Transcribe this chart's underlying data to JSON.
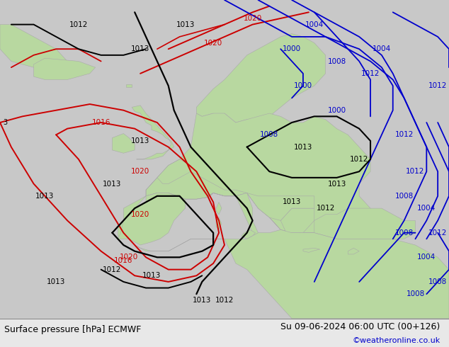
{
  "title_left": "Surface pressure [hPa] ECMWF",
  "title_right": "Su 09-06-2024 06:00 UTC (00+126)",
  "copyright": "©weatheronline.co.uk",
  "land_color": "#b8d8a0",
  "sea_color": "#c8d4dc",
  "bg_color": "#c8c8c8",
  "bottom_bar_color": "#e8e8e8",
  "figsize": [
    6.34,
    4.9
  ],
  "dpi": 100,
  "lon_min": -30,
  "lon_max": 50,
  "lat_min": 24,
  "lat_max": 76
}
